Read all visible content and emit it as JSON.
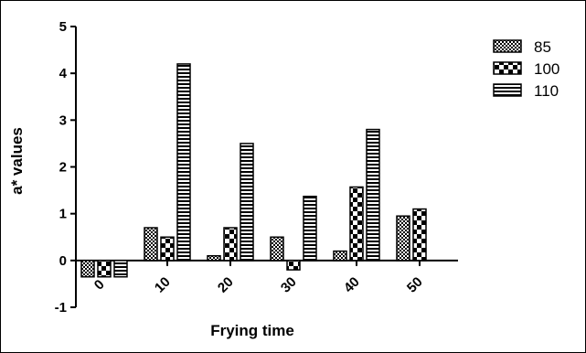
{
  "chart_data": {
    "type": "bar",
    "title": "",
    "xlabel": "Frying time",
    "ylabel": "a* values",
    "categories": [
      "0",
      "10",
      "20",
      "30",
      "40",
      "50"
    ],
    "ylim": [
      -1,
      5
    ],
    "yticks": [
      "-1",
      "0",
      "1",
      "2",
      "3",
      "4",
      "5"
    ],
    "series": [
      {
        "name": "85",
        "pattern": "checker-fine",
        "values": [
          -0.35,
          0.7,
          0.1,
          0.5,
          0.2,
          0.95
        ]
      },
      {
        "name": "100",
        "pattern": "checker-coarse",
        "values": [
          -0.35,
          0.5,
          0.7,
          -0.2,
          1.57,
          1.1
        ]
      },
      {
        "name": "110",
        "pattern": "horizontal-stripes",
        "values": [
          -0.35,
          4.2,
          2.5,
          1.37,
          2.8,
          null
        ]
      }
    ],
    "grid": false,
    "legend": "right"
  }
}
